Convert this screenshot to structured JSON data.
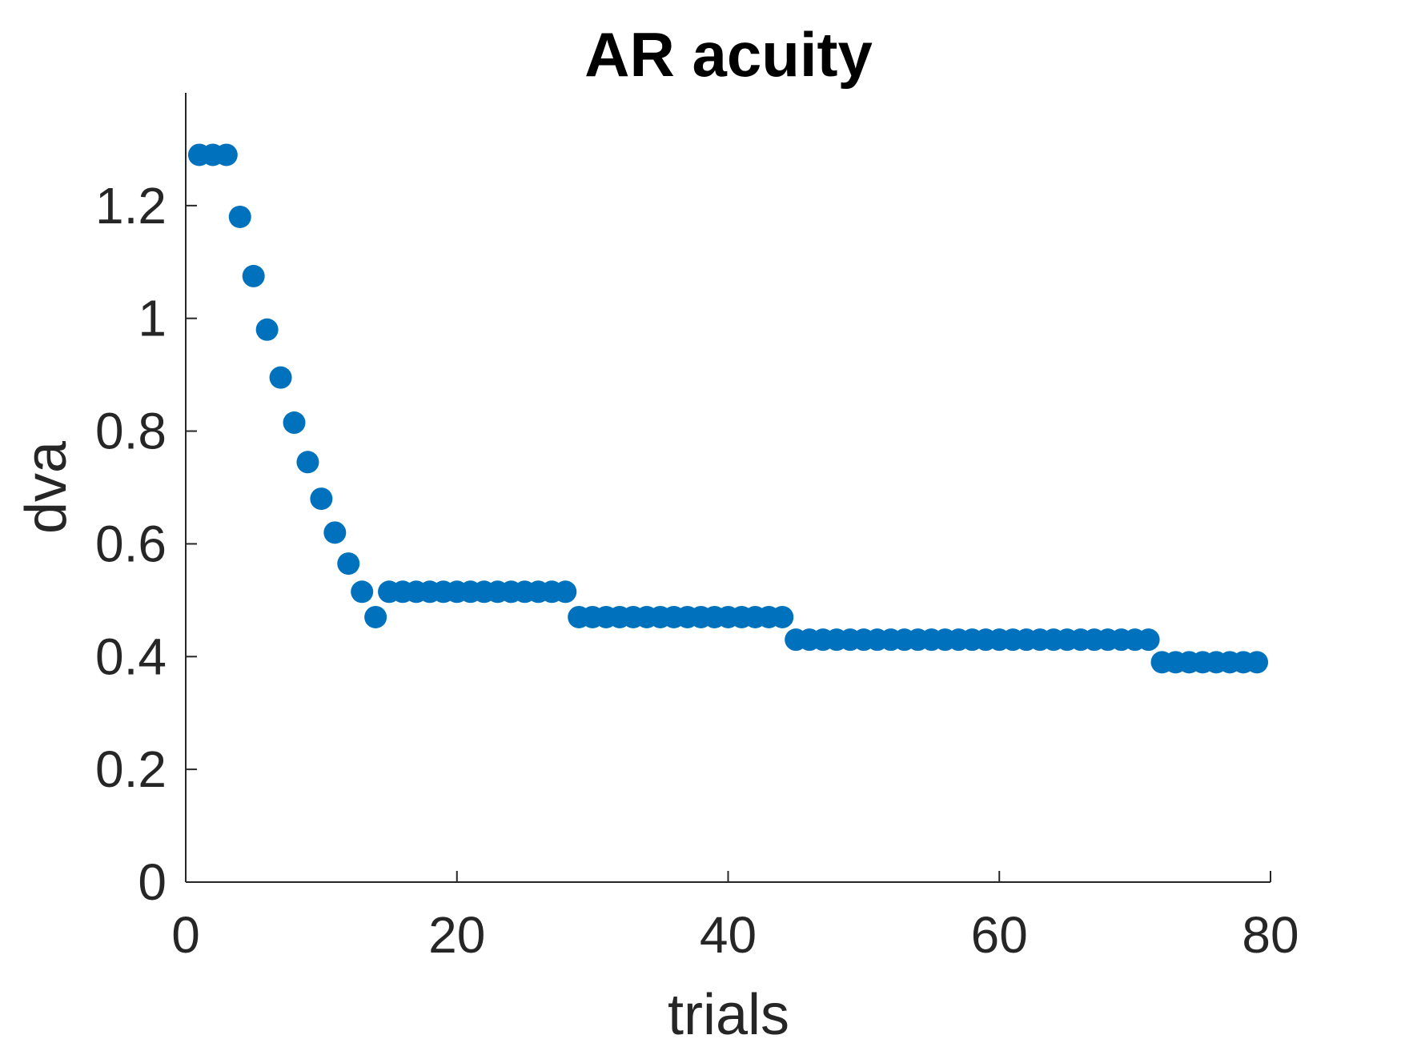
{
  "chart_data": {
    "type": "scatter",
    "title": "AR acuity",
    "xlabel": "trials",
    "ylabel": "dva",
    "xlim": [
      0,
      80
    ],
    "ylim": [
      0,
      1.4
    ],
    "xticks": [
      "0",
      "20",
      "40",
      "60",
      "80"
    ],
    "yticks": [
      "0",
      "0.2",
      "0.4",
      "0.6",
      "0.8",
      "1",
      "1.2"
    ],
    "grid": false,
    "color": "#0072BD",
    "x": [
      1,
      2,
      3,
      4,
      5,
      6,
      7,
      8,
      9,
      10,
      11,
      12,
      13,
      14,
      15,
      16,
      17,
      18,
      19,
      20,
      21,
      22,
      23,
      24,
      25,
      26,
      27,
      28,
      29,
      30,
      31,
      32,
      33,
      34,
      35,
      36,
      37,
      38,
      39,
      40,
      41,
      42,
      43,
      44,
      45,
      46,
      47,
      48,
      49,
      50,
      51,
      52,
      53,
      54,
      55,
      56,
      57,
      58,
      59,
      60,
      61,
      62,
      63,
      64,
      65,
      66,
      67,
      68,
      69,
      70,
      71,
      72,
      73,
      74,
      75,
      76,
      77,
      78,
      79
    ],
    "y": [
      1.29,
      1.29,
      1.29,
      1.18,
      1.075,
      0.98,
      0.895,
      0.815,
      0.745,
      0.68,
      0.62,
      0.565,
      0.515,
      0.47,
      0.515,
      0.515,
      0.515,
      0.515,
      0.515,
      0.515,
      0.515,
      0.515,
      0.515,
      0.515,
      0.515,
      0.515,
      0.515,
      0.515,
      0.47,
      0.47,
      0.47,
      0.47,
      0.47,
      0.47,
      0.47,
      0.47,
      0.47,
      0.47,
      0.47,
      0.47,
      0.47,
      0.47,
      0.47,
      0.47,
      0.43,
      0.43,
      0.43,
      0.43,
      0.43,
      0.43,
      0.43,
      0.43,
      0.43,
      0.43,
      0.43,
      0.43,
      0.43,
      0.43,
      0.43,
      0.43,
      0.43,
      0.43,
      0.43,
      0.43,
      0.43,
      0.43,
      0.43,
      0.43,
      0.43,
      0.43,
      0.43,
      0.39,
      0.39,
      0.39,
      0.39,
      0.39,
      0.39,
      0.39,
      0.39
    ]
  }
}
